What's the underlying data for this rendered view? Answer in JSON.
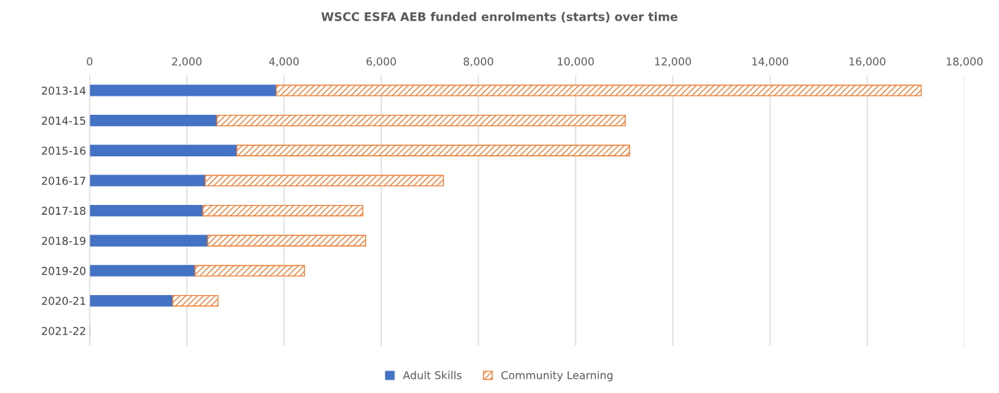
{
  "chart_data": {
    "type": "bar",
    "orientation": "horizontal",
    "stacked": true,
    "title": "WSCC ESFA AEB funded enrolments (starts) over time",
    "categories": [
      "2013-14",
      "2014-15",
      "2015-16",
      "2016-17",
      "2017-18",
      "2018-19",
      "2019-20",
      "2020-21",
      "2021-22"
    ],
    "series": [
      {
        "name": "Adult Skills",
        "color": "#4472c4",
        "values": [
          3840,
          2620,
          3030,
          2380,
          2330,
          2430,
          2170,
          1710,
          null
        ]
      },
      {
        "name": "Community Learning",
        "color": "#ed7d31",
        "values": [
          13270,
          8400,
          8080,
          4900,
          3290,
          3250,
          2250,
          930,
          null
        ]
      }
    ],
    "xlim": [
      0,
      18000
    ],
    "xticks": [
      0,
      {
        "value": 2000,
        "label": "2,000"
      },
      {
        "value": 4000,
        "label": "4,000"
      },
      {
        "value": 6000,
        "label": "6,000"
      },
      {
        "value": 8000,
        "label": "8,000"
      },
      {
        "value": 10000,
        "label": "10,000"
      },
      {
        "value": 12000,
        "label": "12,000"
      },
      {
        "value": 14000,
        "label": "14,000"
      },
      {
        "value": 16000,
        "label": "16,000"
      },
      {
        "value": 18000,
        "label": "18,000"
      }
    ],
    "grid": "x",
    "legend": "bottom"
  }
}
